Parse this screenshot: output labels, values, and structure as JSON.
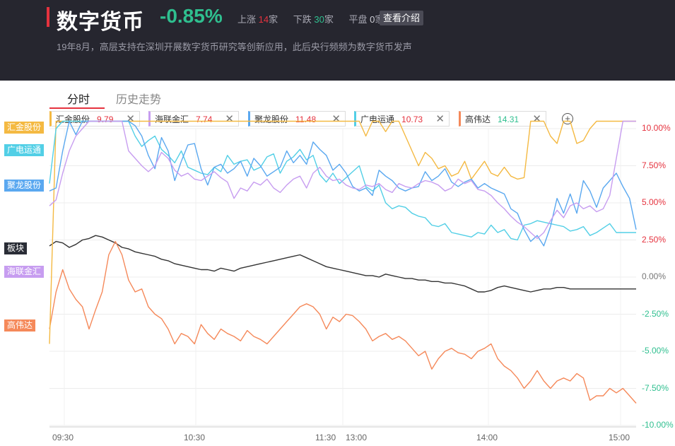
{
  "header": {
    "title": "数字货币",
    "change": "-0.85%",
    "up_label": "上涨",
    "up_count": "14",
    "down_label": "下跌",
    "down_count": "30",
    "flat_label": "平盘",
    "flat_count": "0",
    "unit": "家",
    "intro_button": "查看介绍",
    "description": "19年8月，高层支持在深圳开展数字货币研究等创新应用，此后央行频频为数字货币发声"
  },
  "tabs": [
    {
      "label": "分时",
      "active": true
    },
    {
      "label": "历史走势",
      "active": false
    }
  ],
  "chips": [
    {
      "name": "汇金股份",
      "value": "9.79",
      "color": "#f4b942"
    },
    {
      "name": "海联金汇",
      "value": "7.74",
      "color": "#c79df0"
    },
    {
      "name": "聚龙股份",
      "value": "11.48",
      "color": "#5aa8f0"
    },
    {
      "name": "广电运通",
      "value": "10.73",
      "color": "#52cfe6"
    },
    {
      "name": "高伟达",
      "value": "14.31",
      "color": "#f5895a"
    }
  ],
  "side_tags": [
    {
      "label": "汇金股份",
      "color": "#f4b942"
    },
    {
      "label": "广电运通",
      "color": "#52cfe6"
    },
    {
      "label": "聚龙股份",
      "color": "#5aa8f0"
    },
    {
      "label": "板块",
      "color": "#2a2d36"
    },
    {
      "label": "海联金汇",
      "color": "#c79df0"
    },
    {
      "label": "高伟达",
      "color": "#f5895a"
    }
  ],
  "chart_data": {
    "type": "line",
    "x_ticks": [
      "09:30",
      "10:30",
      "11:30",
      "13:00",
      "14:00",
      "15:00"
    ],
    "y_ticks": [
      "10.00%",
      "7.50%",
      "5.00%",
      "2.50%",
      "0.00%",
      "-2.50%",
      "-5.00%",
      "-7.50%",
      "-10.00%"
    ],
    "ylim": [
      -10,
      10
    ],
    "units": "%",
    "series": [
      {
        "name": "汇金股份",
        "color": "#f4b942",
        "values": [
          -4.5,
          10.5,
          10.5,
          10.5,
          10.5,
          10.5,
          10.5,
          10.5,
          10.5,
          10.5,
          10.5,
          10.5,
          10.5,
          10.5,
          10.5,
          10.5,
          10.5,
          10.5,
          10.5,
          10.5,
          10.5,
          10.5,
          10.5,
          10.5,
          10.5,
          10.5,
          10.5,
          10.5,
          10.5,
          10.5,
          10.5,
          10.5,
          10.5,
          10.5,
          10.5,
          10.5,
          10.5,
          10.5,
          10.5,
          10.5,
          10.5,
          10.5,
          10.5,
          10.5,
          10.5,
          10.5,
          10.5,
          10.5,
          9.5,
          10.5,
          10.5,
          9.8,
          10.5,
          10.5,
          9.5,
          8.5,
          7.5,
          8.4,
          8.0,
          7.3,
          7.5,
          6.8,
          7.0,
          7.8,
          6.6,
          7.2,
          7.8,
          7.0,
          6.8,
          7.4,
          6.8,
          6.6,
          6.7,
          10.5,
          10.5,
          10.5,
          9.5,
          9.0,
          10.5,
          10.5,
          9.0,
          9.2,
          10.0,
          10.5,
          10.5,
          10.5,
          10.5,
          10.5,
          10.5,
          10.5
        ]
      },
      {
        "name": "广电运通",
        "color": "#52cfe6",
        "values": [
          6.3,
          10.0,
          10.5,
          10.5,
          10.5,
          10.5,
          10.5,
          10.5,
          10.5,
          10.5,
          10.5,
          10.5,
          10.5,
          9.5,
          8.8,
          9.2,
          9.5,
          8.6,
          8.2,
          7.7,
          8.5,
          7.4,
          7.2,
          7.0,
          6.9,
          7.4,
          7.1,
          8.2,
          7.6,
          7.8,
          7.9,
          7.2,
          7.4,
          8.1,
          8.3,
          7.0,
          7.8,
          8.1,
          8.6,
          7.9,
          8.2,
          6.9,
          6.4,
          7.0,
          6.3,
          6.7,
          7.1,
          7.5,
          6.1,
          5.8,
          6.2,
          5.0,
          4.6,
          4.8,
          4.7,
          4.3,
          4.1,
          4.0,
          3.5,
          3.4,
          3.6,
          3.0,
          2.9,
          2.8,
          2.7,
          3.0,
          2.9,
          3.5,
          3.0,
          3.2,
          2.6,
          2.5,
          3.5,
          3.6,
          3.8,
          3.7,
          3.6,
          3.5,
          3.4,
          3.1,
          3.2,
          3.4,
          2.8,
          3.0,
          3.3,
          3.6,
          3.0,
          3.0,
          3.0,
          3.0
        ]
      },
      {
        "name": "聚龙股份",
        "color": "#5aa8f0",
        "values": [
          5.8,
          6.0,
          8.5,
          10.5,
          9.6,
          10.5,
          10.5,
          10.5,
          10.5,
          10.5,
          10.5,
          10.5,
          10.5,
          10.2,
          9.5,
          8.2,
          7.3,
          9.4,
          8.5,
          6.5,
          7.8,
          8.9,
          9.0,
          7.3,
          6.2,
          7.4,
          7.6,
          7.0,
          7.3,
          7.8,
          6.8,
          8.0,
          7.5,
          6.8,
          7.1,
          7.4,
          8.5,
          7.7,
          8.2,
          7.6,
          9.1,
          8.6,
          8.2,
          7.2,
          7.6,
          7.0,
          6.1,
          5.8,
          6.0,
          5.5,
          7.2,
          6.8,
          6.5,
          6.0,
          5.8,
          6.0,
          6.1,
          7.1,
          6.5,
          6.8,
          7.3,
          6.4,
          6.1,
          6.4,
          6.6,
          6.0,
          6.3,
          6.0,
          5.8,
          5.6,
          4.6,
          4.3,
          3.2,
          2.4,
          2.8,
          2.1,
          3.4,
          5.3,
          4.3,
          5.6,
          4.3,
          6.5,
          5.8,
          4.7,
          6.0,
          6.5,
          7.0,
          6.1,
          5.3,
          3.2
        ]
      },
      {
        "name": "海联金汇",
        "color": "#c79df0",
        "values": [
          4.8,
          5.2,
          7.0,
          8.5,
          9.5,
          10.0,
          10.5,
          10.5,
          10.5,
          10.5,
          10.5,
          10.5,
          8.5,
          8.0,
          7.5,
          7.1,
          7.5,
          8.4,
          8.0,
          7.2,
          6.8,
          7.0,
          6.6,
          6.5,
          6.8,
          7.1,
          6.7,
          6.4,
          5.3,
          6.0,
          5.8,
          6.4,
          6.2,
          6.6,
          6.0,
          5.7,
          6.2,
          6.6,
          6.8,
          6.0,
          7.0,
          7.4,
          6.8,
          6.5,
          6.6,
          6.2,
          6.0,
          5.9,
          6.2,
          6.1,
          6.3,
          5.9,
          5.7,
          6.3,
          6.1,
          6.0,
          6.3,
          6.5,
          6.4,
          6.2,
          5.8,
          6.0,
          6.6,
          6.3,
          6.5,
          5.9,
          5.8,
          5.5,
          5.0,
          4.6,
          4.1,
          3.7,
          3.4,
          3.0,
          2.6,
          3.0,
          3.8,
          4.5,
          4.0,
          4.8,
          5.0,
          4.6,
          4.8,
          4.4,
          4.6,
          5.5,
          8.0,
          10.5,
          10.5,
          10.5
        ]
      },
      {
        "name": "板块",
        "color": "#333333",
        "values": [
          2.1,
          2.4,
          2.3,
          2.0,
          2.2,
          2.5,
          2.6,
          2.8,
          2.7,
          2.5,
          2.3,
          2.0,
          1.9,
          1.7,
          1.6,
          1.5,
          1.4,
          1.2,
          1.1,
          0.9,
          0.8,
          0.7,
          0.6,
          0.5,
          0.5,
          0.4,
          0.6,
          0.5,
          0.4,
          0.6,
          0.7,
          0.8,
          0.9,
          1.0,
          1.1,
          1.2,
          1.3,
          1.4,
          1.5,
          1.3,
          1.1,
          0.9,
          0.7,
          0.6,
          0.5,
          0.4,
          0.3,
          0.2,
          0.1,
          0.1,
          0.0,
          0.2,
          0.1,
          0.0,
          -0.1,
          -0.1,
          -0.2,
          -0.2,
          -0.3,
          -0.3,
          -0.4,
          -0.4,
          -0.5,
          -0.6,
          -0.8,
          -1.0,
          -1.0,
          -0.9,
          -0.7,
          -0.6,
          -0.7,
          -0.8,
          -0.9,
          -1.0,
          -0.9,
          -0.8,
          -0.8,
          -0.7,
          -0.7,
          -0.8,
          -0.8,
          -0.8,
          -0.8,
          -0.8,
          -0.8,
          -0.8,
          -0.8,
          -0.8,
          -0.8,
          -0.8
        ]
      },
      {
        "name": "高伟达",
        "color": "#f5895a",
        "values": [
          -3.5,
          -1.0,
          0.5,
          -0.8,
          -1.5,
          -2.0,
          -3.5,
          -2.2,
          -1.0,
          1.5,
          2.4,
          1.5,
          -0.2,
          -1.0,
          -0.8,
          -2.0,
          -2.5,
          -2.8,
          -3.5,
          -4.5,
          -3.8,
          -4.0,
          -4.5,
          -3.2,
          -3.8,
          -4.2,
          -3.5,
          -3.8,
          -4.0,
          -4.3,
          -3.6,
          -4.0,
          -4.2,
          -4.5,
          -4.0,
          -3.5,
          -3.0,
          -2.5,
          -2.0,
          -1.8,
          -2.0,
          -2.5,
          -3.5,
          -2.7,
          -3.0,
          -2.5,
          -2.6,
          -3.0,
          -3.5,
          -4.3,
          -4.0,
          -3.8,
          -4.2,
          -4.0,
          -4.3,
          -4.8,
          -5.3,
          -5.0,
          -6.2,
          -5.5,
          -5.0,
          -4.8,
          -5.1,
          -5.2,
          -5.5,
          -5.0,
          -4.8,
          -4.5,
          -5.5,
          -6.0,
          -6.3,
          -6.8,
          -7.5,
          -7.0,
          -6.3,
          -7.0,
          -7.5,
          -7.0,
          -6.8,
          -7.0,
          -6.5,
          -6.8,
          -8.3,
          -8.0,
          -8.0,
          -7.5,
          -7.8,
          -7.5,
          -8.0,
          -8.5
        ]
      }
    ]
  }
}
